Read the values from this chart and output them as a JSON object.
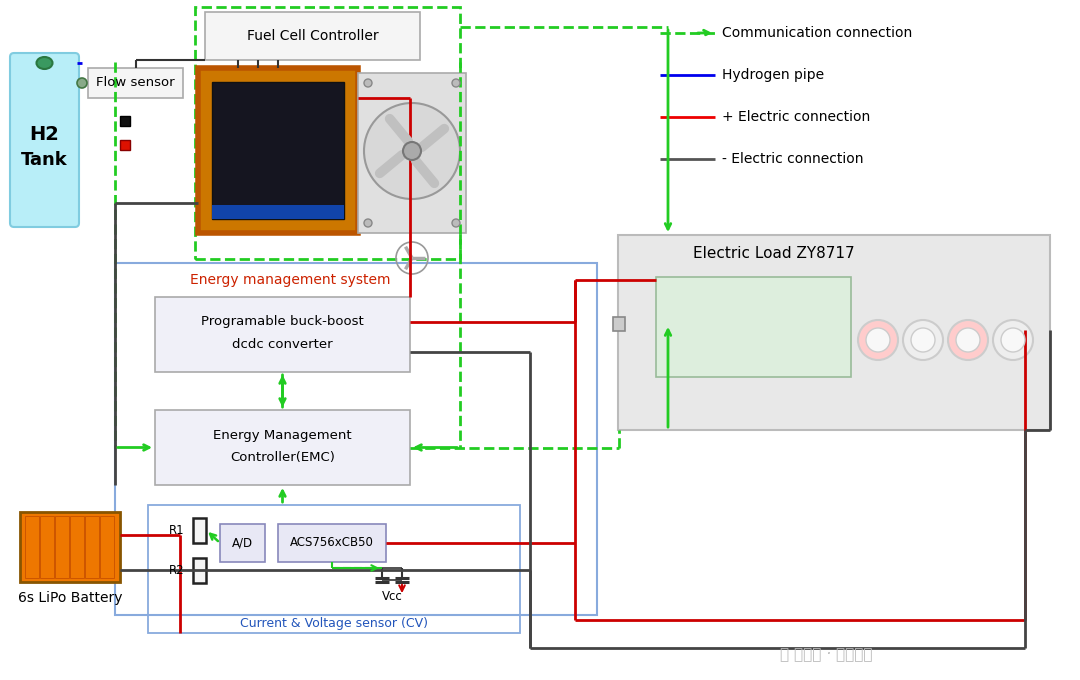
{
  "bg_color": "#ffffff",
  "legend": [
    {
      "label": "Communication connection",
      "color": "#22cc22",
      "ls": "--"
    },
    {
      "label": "Hydrogen pipe",
      "color": "#0000ee",
      "ls": "-"
    },
    {
      "label": "+ Electric connection",
      "color": "#ee0000",
      "ls": "-"
    },
    {
      "label": "- Electric connection",
      "color": "#555555",
      "ls": "-"
    }
  ]
}
